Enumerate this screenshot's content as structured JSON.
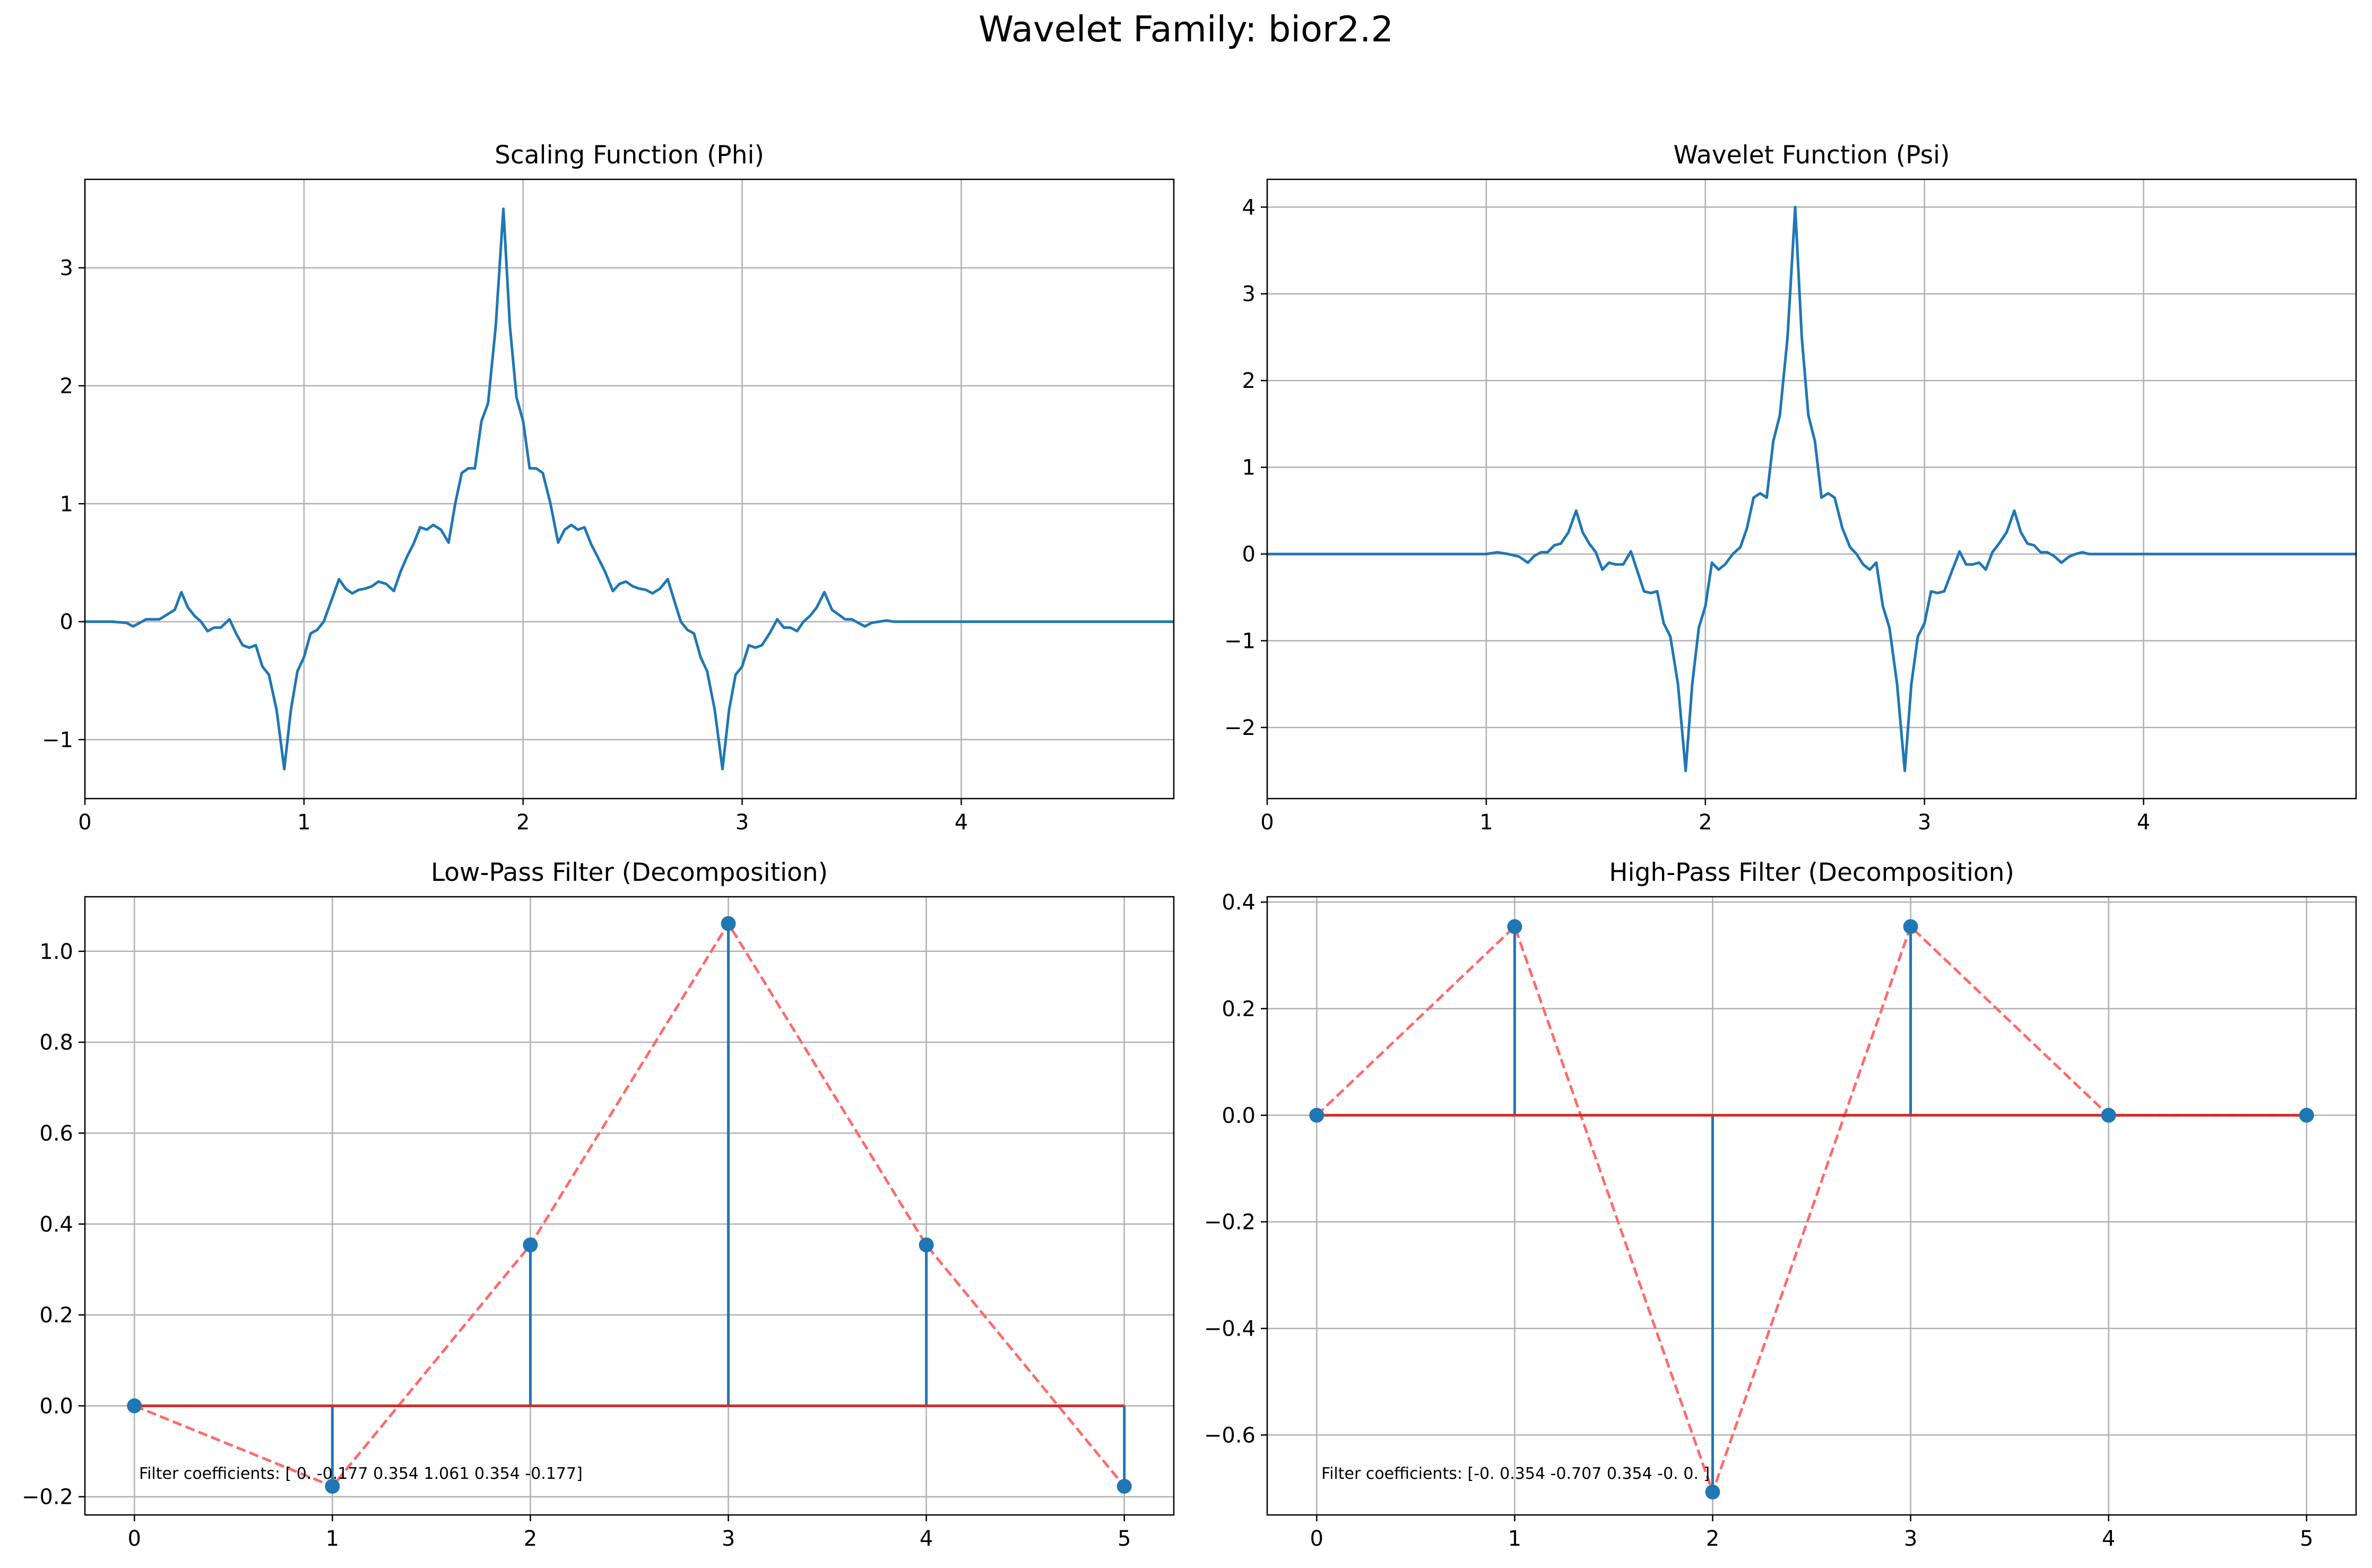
{
  "suptitle": "Wavelet Family: bior2.2",
  "colors": {
    "line": "#1f77b4",
    "baseline": "#d62728",
    "dashed": "#ff6b6b",
    "grid": "#b0b0b0"
  },
  "chart_data": [
    {
      "type": "line",
      "title": "Scaling Function (Phi)",
      "xlim": [
        0,
        4.97
      ],
      "ylim": [
        -1.5,
        3.75
      ],
      "xticks": [
        0,
        1,
        2,
        3,
        4
      ],
      "yticks": [
        -1,
        0,
        1,
        2,
        3
      ],
      "grid": true,
      "x": [
        0,
        0.125,
        0.19,
        0.22,
        0.25,
        0.28,
        0.34,
        0.375,
        0.41,
        0.44,
        0.47,
        0.5,
        0.53,
        0.56,
        0.59,
        0.62,
        0.66,
        0.69,
        0.72,
        0.75,
        0.78,
        0.81,
        0.84,
        0.875,
        0.91,
        0.94,
        0.97,
        1.0,
        1.03,
        1.06,
        1.09,
        1.125,
        1.16,
        1.19,
        1.22,
        1.25,
        1.28,
        1.31,
        1.34,
        1.375,
        1.41,
        1.44,
        1.47,
        1.5,
        1.53,
        1.56,
        1.59,
        1.625,
        1.66,
        1.69,
        1.72,
        1.75,
        1.78,
        1.81,
        1.84,
        1.875,
        1.91,
        1.94,
        1.97,
        2.0,
        2.03,
        2.06,
        2.09,
        2.125,
        2.16,
        2.19,
        2.22,
        2.25,
        2.28,
        2.31,
        2.34,
        2.375,
        2.41,
        2.44,
        2.47,
        2.5,
        2.53,
        2.56,
        2.59,
        2.625,
        2.66,
        2.69,
        2.72,
        2.75,
        2.78,
        2.81,
        2.84,
        2.875,
        2.91,
        2.94,
        2.97,
        3.0,
        3.03,
        3.06,
        3.09,
        3.125,
        3.16,
        3.19,
        3.22,
        3.25,
        3.28,
        3.31,
        3.34,
        3.375,
        3.41,
        3.44,
        3.47,
        3.5,
        3.53,
        3.56,
        3.59,
        3.625,
        3.66,
        3.69,
        3.72,
        3.75,
        3.78,
        3.81,
        3.84,
        3.875,
        3.9,
        4.97
      ],
      "y": [
        0,
        0,
        -0.01,
        -0.04,
        -0.01,
        0.02,
        0.02,
        0.06,
        0.1,
        0.25,
        0.12,
        0.05,
        0.0,
        -0.08,
        -0.05,
        -0.05,
        0.02,
        -0.1,
        -0.2,
        -0.22,
        -0.2,
        -0.38,
        -0.45,
        -0.75,
        -1.25,
        -0.75,
        -0.42,
        -0.3,
        -0.1,
        -0.07,
        0.0,
        0.18,
        0.36,
        0.28,
        0.24,
        0.27,
        0.28,
        0.3,
        0.34,
        0.32,
        0.26,
        0.42,
        0.55,
        0.66,
        0.8,
        0.78,
        0.82,
        0.78,
        0.67,
        1.0,
        1.26,
        1.3,
        1.3,
        1.7,
        1.85,
        2.5,
        3.5,
        2.5,
        1.9,
        1.7,
        1.3,
        1.3,
        1.26,
        1.0,
        0.67,
        0.78,
        0.82,
        0.78,
        0.8,
        0.66,
        0.55,
        0.42,
        0.26,
        0.32,
        0.34,
        0.3,
        0.28,
        0.27,
        0.24,
        0.28,
        0.36,
        0.18,
        0.0,
        -0.07,
        -0.1,
        -0.3,
        -0.42,
        -0.75,
        -1.25,
        -0.75,
        -0.45,
        -0.38,
        -0.2,
        -0.22,
        -0.2,
        -0.1,
        0.02,
        -0.05,
        -0.05,
        -0.08,
        0.0,
        0.05,
        0.12,
        0.25,
        0.1,
        0.06,
        0.02,
        0.02,
        -0.01,
        -0.04,
        -0.01,
        0.0,
        0.01,
        0.0,
        0.0,
        0,
        0,
        0,
        0,
        0,
        0,
        0
      ]
    },
    {
      "type": "line",
      "title": "Wavelet Function (Psi)",
      "xlim": [
        0,
        4.97
      ],
      "ylim": [
        -2.82,
        4.32
      ],
      "xticks": [
        0,
        1,
        2,
        3,
        4
      ],
      "yticks": [
        -2,
        -1,
        0,
        1,
        2,
        3,
        4
      ],
      "grid": true,
      "x": [
        0,
        1.0,
        1.05,
        1.1,
        1.15,
        1.19,
        1.22,
        1.25,
        1.28,
        1.31,
        1.34,
        1.375,
        1.41,
        1.44,
        1.47,
        1.5,
        1.53,
        1.56,
        1.59,
        1.625,
        1.66,
        1.69,
        1.72,
        1.75,
        1.78,
        1.81,
        1.84,
        1.875,
        1.91,
        1.94,
        1.97,
        2.0,
        2.03,
        2.06,
        2.09,
        2.125,
        2.16,
        2.19,
        2.22,
        2.25,
        2.28,
        2.31,
        2.34,
        2.375,
        2.41,
        2.44,
        2.47,
        2.5,
        2.53,
        2.56,
        2.59,
        2.625,
        2.66,
        2.69,
        2.72,
        2.75,
        2.78,
        2.81,
        2.84,
        2.875,
        2.91,
        2.94,
        2.97,
        3.0,
        3.03,
        3.06,
        3.09,
        3.125,
        3.16,
        3.19,
        3.22,
        3.25,
        3.28,
        3.31,
        3.34,
        3.375,
        3.41,
        3.44,
        3.47,
        3.5,
        3.53,
        3.56,
        3.59,
        3.625,
        3.66,
        3.69,
        3.72,
        3.75,
        3.8,
        3.85,
        3.9,
        4.97
      ],
      "y": [
        0,
        0,
        0.02,
        0.0,
        -0.03,
        -0.1,
        -0.02,
        0.02,
        0.02,
        0.1,
        0.12,
        0.25,
        0.5,
        0.25,
        0.12,
        0.02,
        -0.18,
        -0.1,
        -0.12,
        -0.12,
        0.03,
        -0.2,
        -0.43,
        -0.45,
        -0.43,
        -0.8,
        -0.95,
        -1.5,
        -2.5,
        -1.5,
        -0.85,
        -0.6,
        -0.1,
        -0.18,
        -0.12,
        0.0,
        0.08,
        0.3,
        0.65,
        0.7,
        0.65,
        1.3,
        1.6,
        2.5,
        4.0,
        2.5,
        1.6,
        1.3,
        0.65,
        0.7,
        0.65,
        0.3,
        0.08,
        0.0,
        -0.12,
        -0.18,
        -0.1,
        -0.6,
        -0.85,
        -1.5,
        -2.5,
        -1.5,
        -0.95,
        -0.8,
        -0.43,
        -0.45,
        -0.43,
        -0.2,
        0.03,
        -0.12,
        -0.12,
        -0.1,
        -0.18,
        0.02,
        0.12,
        0.25,
        0.5,
        0.25,
        0.12,
        0.1,
        0.02,
        0.02,
        -0.02,
        -0.1,
        -0.03,
        0.0,
        0.02,
        0.0,
        0,
        0,
        0,
        0
      ]
    },
    {
      "type": "stem",
      "title": "Low-Pass Filter (Decomposition)",
      "x": [
        0,
        1,
        2,
        3,
        4,
        5
      ],
      "values": [
        0,
        -0.177,
        0.354,
        1.061,
        0.354,
        -0.177
      ],
      "xlim": [
        -0.25,
        5.25
      ],
      "ylim": [
        -0.24,
        1.12
      ],
      "xticks": [
        0,
        1,
        2,
        3,
        4,
        5
      ],
      "yticks": [
        -0.2,
        0.0,
        0.2,
        0.4,
        0.6,
        0.8,
        1.0
      ],
      "ytick_labels": [
        "−0.2",
        "0.0",
        "0.2",
        "0.4",
        "0.6",
        "0.8",
        "1.0"
      ],
      "grid": true,
      "annotation": "Filter coefficients: [ 0.    -0.177  0.354  1.061  0.354 -0.177]"
    },
    {
      "type": "stem",
      "title": "High-Pass Filter (Decomposition)",
      "x": [
        0,
        1,
        2,
        3,
        4,
        5
      ],
      "values": [
        0,
        0.354,
        -0.707,
        0.354,
        0,
        0
      ],
      "xlim": [
        -0.25,
        5.25
      ],
      "ylim": [
        -0.75,
        0.41
      ],
      "xticks": [
        0,
        1,
        2,
        3,
        4,
        5
      ],
      "yticks": [
        -0.6,
        -0.4,
        -0.2,
        0.0,
        0.2,
        0.4
      ],
      "ytick_labels": [
        "−0.6",
        "−0.4",
        "−0.2",
        "0.0",
        "0.2",
        "0.4"
      ],
      "grid": true,
      "annotation": "Filter coefficients: [-0.     0.354 -0.707  0.354 -0.     0.   ]"
    }
  ]
}
